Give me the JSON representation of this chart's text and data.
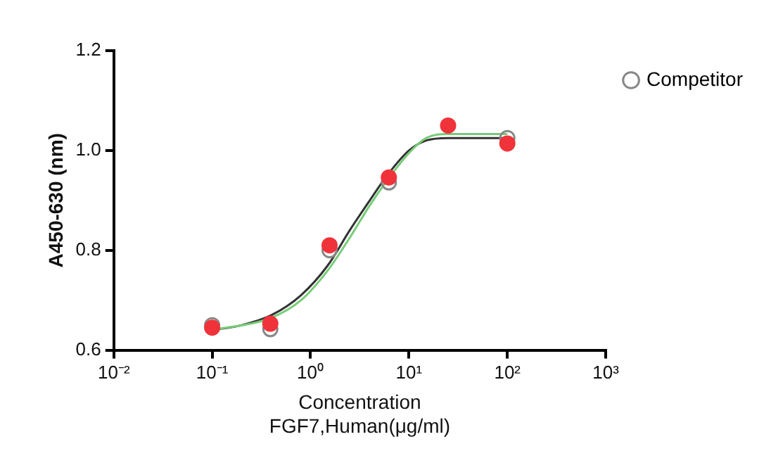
{
  "chart_data": {
    "type": "scatter",
    "xlabel": "Concentration\nFGF7,Human(μg/ml)",
    "ylabel": "A450-630 (nm)",
    "log": "x",
    "xlim": [
      0.01,
      1000
    ],
    "xticks": [
      {
        "value": 0.01,
        "label": "10⁻²"
      },
      {
        "value": 0.1,
        "label": "10⁻¹"
      },
      {
        "value": 1,
        "label": "10⁰"
      },
      {
        "value": 10,
        "label": "10¹"
      },
      {
        "value": 100,
        "label": "10²"
      },
      {
        "value": 1000,
        "label": "10³"
      }
    ],
    "ylim": [
      0.6,
      1.2
    ],
    "yticks": [
      0.6,
      0.8,
      {
        "value": 1,
        "label": "1.0"
      },
      1.2
    ],
    "legend": "top right",
    "marker": "circle",
    "series": [
      {
        "type": "line",
        "color": "#333333",
        "marker": "none",
        "x": [
          0.1,
          0.2,
          0.4,
          0.8,
          1.5,
          2.5,
          4,
          6,
          10,
          15,
          25,
          100
        ],
        "values": [
          0.64,
          0.65,
          0.67,
          0.71,
          0.77,
          0.84,
          0.9,
          0.95,
          1.0,
          1.02,
          1.025,
          1.025
        ]
      },
      {
        "type": "line",
        "color": "#77cc77",
        "marker": "none",
        "x": [
          0.1,
          0.4,
          0.8,
          1.5,
          2.5,
          4,
          6,
          10,
          15,
          25,
          100
        ],
        "values": [
          0.64,
          0.665,
          0.7,
          0.76,
          0.825,
          0.89,
          0.94,
          0.995,
          1.025,
          1.033,
          1.033
        ]
      },
      {
        "name": "Competitor",
        "color": "#888888",
        "x": [
          0.1,
          0.39,
          1.56,
          6.25,
          25,
          100
        ],
        "values": [
          0.65,
          0.642,
          0.8,
          0.936,
          null,
          1.025
        ]
      },
      {
        "color": "#f0333a",
        "x": [
          0.1,
          0.39,
          1.56,
          6.25,
          25,
          100
        ],
        "values": [
          0.645,
          0.653,
          0.81,
          0.946,
          1.05,
          1.014
        ]
      }
    ]
  }
}
